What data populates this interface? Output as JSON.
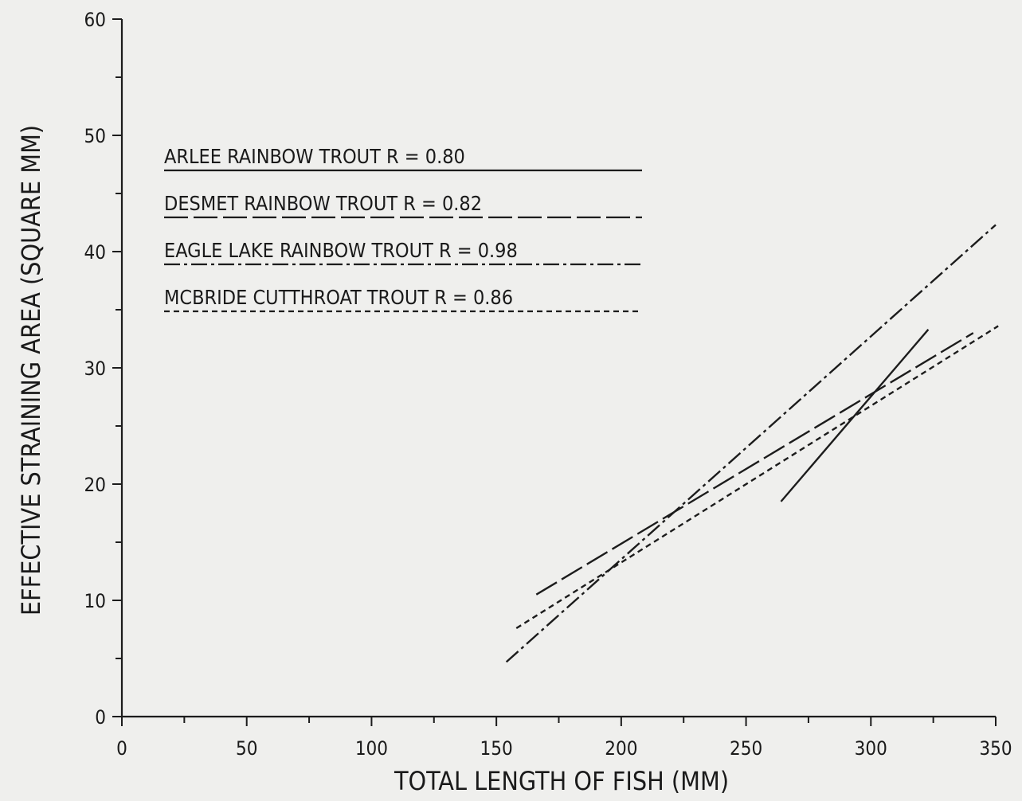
{
  "chart_data": {
    "type": "line",
    "title": "",
    "xlabel": "TOTAL LENGTH OF FISH (MM)",
    "ylabel": "EFFECTIVE STRAINING AREA (SQUARE MM)",
    "xlim": [
      0,
      350
    ],
    "ylim": [
      0,
      60
    ],
    "xticks": [
      "0",
      "50",
      "100",
      "150",
      "200",
      "250",
      "300",
      "350"
    ],
    "yticks": [
      "0",
      "10",
      "20",
      "30",
      "40",
      "50",
      "60"
    ],
    "grid": false,
    "legend_position": "top-left",
    "series": [
      {
        "name": "ARLEE RAINBOW TROUT R = 0.80",
        "style": "solid",
        "x": [
          264,
          323
        ],
        "y": [
          18.5,
          33.3
        ]
      },
      {
        "name": "DESMET RAINBOW TROUT R = 0.82",
        "style": "long-dash",
        "x": [
          166,
          341
        ],
        "y": [
          10.5,
          33.0
        ]
      },
      {
        "name": "EAGLE LAKE RAINBOW TROUT R = 0.98",
        "style": "dash-dot",
        "x": [
          154,
          350
        ],
        "y": [
          4.7,
          42.3
        ]
      },
      {
        "name": "MCBRIDE CUTTHROAT TROUT R = 0.86",
        "style": "short-dash",
        "x": [
          158,
          351
        ],
        "y": [
          7.6,
          33.6
        ]
      }
    ]
  }
}
